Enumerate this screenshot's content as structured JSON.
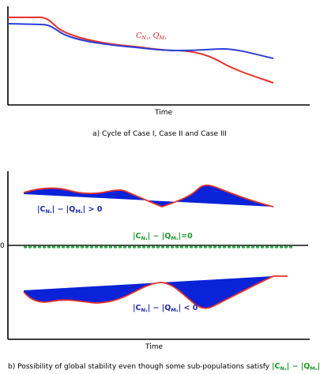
{
  "panel_a": {
    "series_label": "C_N1, Q_M1",
    "xlabel": "Time",
    "caption": "a) Cycle of Case I, Case II and Case III",
    "colors": {
      "c_n1": "#e8322a",
      "q_m1": "#2a3fd6"
    }
  },
  "panel_b": {
    "upper_label": "|C_N1| − |Q_M1| > 0",
    "middle_label": "|C_N1| − |Q_M1|=0",
    "lower_label": "|C_N1| − |Q_M1| < 0",
    "zero_tick": "0",
    "xlabel": "Time",
    "caption_prefix": "b) Possibility of global stability even though some sub-populations satisfy ",
    "caption_formula": "|C_N1| − |Q_M1|=0",
    "colors": {
      "fill": "#0a22d8",
      "outline": "#e8322a",
      "baseline": "#2fa84a"
    }
  }
}
